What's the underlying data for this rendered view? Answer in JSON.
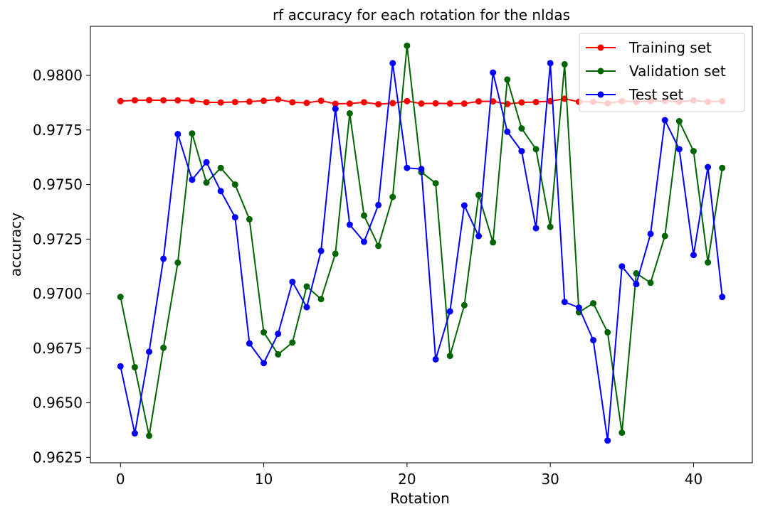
{
  "chart_data": {
    "type": "line",
    "title": "rf accuracy for each rotation for the nldas",
    "xlabel": "Rotation",
    "ylabel": "accuracy",
    "xlim": [
      -2.1,
      44.1
    ],
    "ylim": [
      0.96225,
      0.98225
    ],
    "xticks": [
      0,
      10,
      20,
      30,
      40
    ],
    "xtick_labels": [
      "0",
      "10",
      "20",
      "30",
      "40"
    ],
    "yticks": [
      0.9625,
      0.965,
      0.9675,
      0.97,
      0.9725,
      0.975,
      0.9775,
      0.98
    ],
    "ytick_labels": [
      "0.9625",
      "0.9650",
      "0.9675",
      "0.9700",
      "0.9725",
      "0.9750",
      "0.9775",
      "0.9800"
    ],
    "grid": false,
    "legend_position": "top-right",
    "x": [
      0,
      1,
      2,
      3,
      4,
      5,
      6,
      7,
      8,
      9,
      10,
      11,
      12,
      13,
      14,
      15,
      16,
      17,
      18,
      19,
      20,
      21,
      22,
      23,
      24,
      25,
      26,
      27,
      28,
      29,
      30,
      31,
      32,
      33,
      34,
      35,
      36,
      37,
      38,
      39,
      40,
      41,
      42
    ],
    "series": [
      {
        "name": "Training set",
        "color": "#ff0000",
        "values": [
          0.97882,
          0.97886,
          0.97887,
          0.97886,
          0.97886,
          0.97884,
          0.97877,
          0.97876,
          0.97878,
          0.9788,
          0.97884,
          0.9789,
          0.97877,
          0.97874,
          0.97884,
          0.9787,
          0.97871,
          0.97877,
          0.97868,
          0.97873,
          0.97882,
          0.97871,
          0.97872,
          0.97871,
          0.97871,
          0.97881,
          0.97881,
          0.97869,
          0.97876,
          0.97878,
          0.97882,
          0.97893,
          0.97879,
          0.97879,
          0.97872,
          0.97882,
          0.97879,
          0.97883,
          0.97883,
          0.97879,
          0.97886,
          0.97879,
          0.97882
        ]
      },
      {
        "name": "Validation set",
        "color": "#006400",
        "values": [
          0.96985,
          0.96663,
          0.96349,
          0.96752,
          0.97142,
          0.97734,
          0.97509,
          0.97576,
          0.975,
          0.97341,
          0.96823,
          0.96722,
          0.96776,
          0.97033,
          0.96975,
          0.97183,
          0.97826,
          0.97358,
          0.97219,
          0.97443,
          0.98136,
          0.97557,
          0.97506,
          0.96715,
          0.96947,
          0.97452,
          0.97235,
          0.97981,
          0.97757,
          0.97662,
          0.97306,
          0.98051,
          0.96915,
          0.96956,
          0.96823,
          0.96363,
          0.97093,
          0.9705,
          0.97264,
          0.9779,
          0.97653,
          0.97143,
          0.97576
        ]
      },
      {
        "name": "Test set",
        "color": "#0000ff",
        "values": [
          0.96667,
          0.9636,
          0.96734,
          0.9716,
          0.97731,
          0.97522,
          0.97602,
          0.9747,
          0.9735,
          0.96772,
          0.96682,
          0.96816,
          0.97054,
          0.96938,
          0.97196,
          0.97847,
          0.97316,
          0.97238,
          0.97406,
          0.98056,
          0.97576,
          0.97571,
          0.96699,
          0.96919,
          0.97404,
          0.97264,
          0.98013,
          0.97742,
          0.97653,
          0.973,
          0.98056,
          0.96962,
          0.96936,
          0.96787,
          0.96327,
          0.97125,
          0.97044,
          0.97274,
          0.97795,
          0.97662,
          0.97177,
          0.9758,
          0.96985
        ]
      }
    ]
  }
}
